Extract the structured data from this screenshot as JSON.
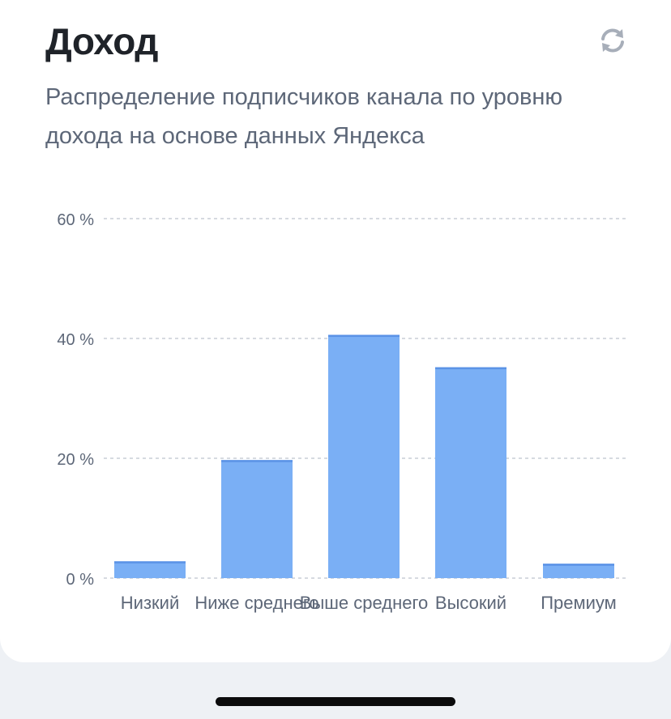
{
  "header": {
    "title": "Доход",
    "subtitle": "Распределение подписчиков канала по уровню дохода на основе данных Яндекса",
    "refresh_icon": "refresh-icon"
  },
  "chart_data": {
    "type": "bar",
    "categories": [
      "Низкий",
      "Ниже среднего",
      "Выше среднего",
      "Высокий",
      "Премиум"
    ],
    "values": [
      2.8,
      19.7,
      40.6,
      35.2,
      2.4
    ],
    "yticks": [
      "0 %",
      "20 %",
      "40 %",
      "60 %"
    ],
    "ylim": [
      0,
      60
    ],
    "grid": true,
    "bar_color": "#7aaff5",
    "bar_top_color": "#5b93e6"
  }
}
